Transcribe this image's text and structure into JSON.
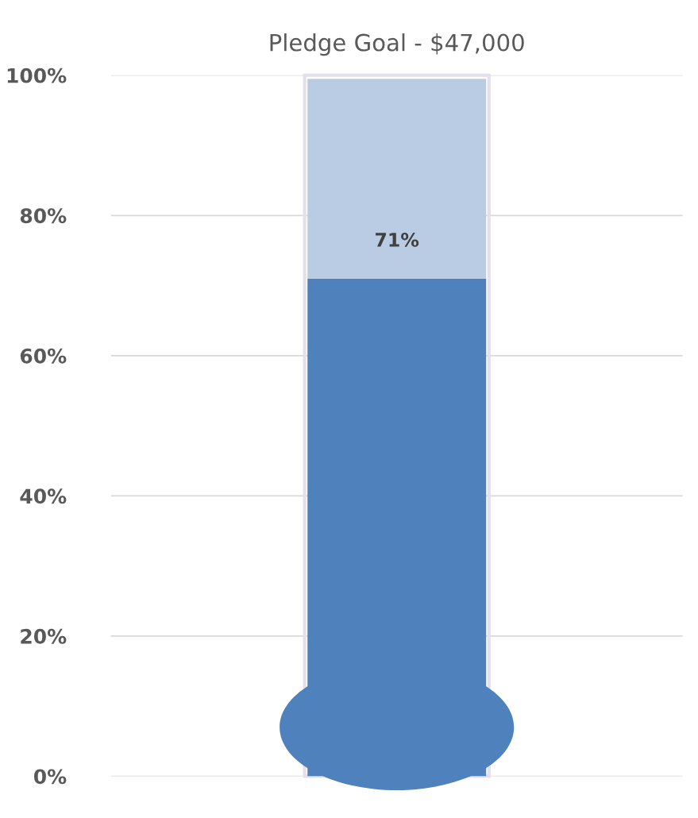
{
  "chart_data": {
    "type": "bar",
    "title": "Pledge Goal - $47,000",
    "categories": [
      null
    ],
    "stacked": true,
    "series": [
      {
        "color": "#4f81bd",
        "values": [
          71
        ],
        "value_labels": [
          "71%"
        ]
      },
      {
        "color": "#b9cce4",
        "values": [
          28.5
        ]
      }
    ],
    "ylim": [
      0,
      100
    ],
    "yticks": [
      {
        "value": 0,
        "label": "0%"
      },
      {
        "value": 20,
        "label": "20%"
      },
      {
        "value": 40,
        "label": "40%"
      },
      {
        "value": 60,
        "label": "60%"
      },
      {
        "value": 80,
        "label": "80%"
      },
      {
        "value": 100,
        "label": "100%"
      }
    ],
    "grid": "y",
    "legend": false,
    "tick_labels": "y"
  }
}
